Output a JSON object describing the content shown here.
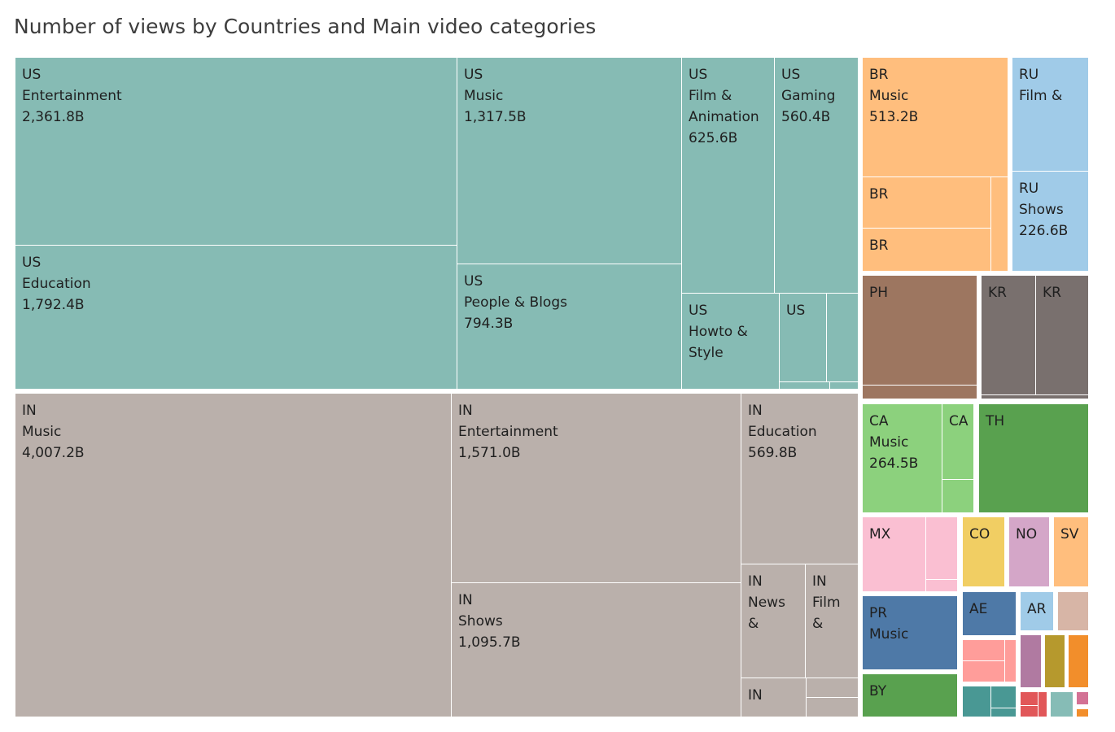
{
  "chart_data": {
    "type": "treemap",
    "title": "Number of views by Countries and Main video categories",
    "unit": "B",
    "colors": {
      "US": "#86bbb4",
      "IN": "#bab0ab",
      "BR": "#ffbe7d",
      "RU": "#a0cbe8",
      "PH": "#9d7660",
      "KR": "#79706e",
      "CA": "#8cd17d",
      "TH": "#59a14f",
      "MX": "#fabfd2",
      "CO": "#f1ce63",
      "NO": "#d4a6c8",
      "SV": "#ffbe7d",
      "PR": "#4e79a7",
      "AE": "#4e79a7",
      "AR": "#a0cbe8",
      "BY": "#59a14f",
      "misc_tan": "#d7b5a6",
      "misc_salmon": "#ff9d9a",
      "misc_purple": "#b07aa1",
      "misc_olive": "#b6992d",
      "misc_orange": "#f28e2b",
      "misc_teal": "#499894",
      "misc_red": "#e15759",
      "misc_seafoam": "#86bcb6",
      "misc_pink": "#d37295"
    },
    "cells": [
      {
        "country": "US",
        "category": "Entertainment",
        "value": "2,361.8B"
      },
      {
        "country": "US",
        "category": "Education",
        "value": "1,792.4B"
      },
      {
        "country": "US",
        "category": "Music",
        "value": "1,317.5B"
      },
      {
        "country": "US",
        "category": "People & Blogs",
        "value": "794.3B"
      },
      {
        "country": "US",
        "category": "Film & Animation",
        "value": "625.6B"
      },
      {
        "country": "US",
        "category": "Gaming",
        "value": "560.4B"
      },
      {
        "country": "US",
        "category": "Howto & Style",
        "value": null
      },
      {
        "country": "US",
        "category": null,
        "value": null
      },
      {
        "country": "IN",
        "category": "Music",
        "value": "4,007.2B"
      },
      {
        "country": "IN",
        "category": "Entertainment",
        "value": "1,571.0B"
      },
      {
        "country": "IN",
        "category": "Shows",
        "value": "1,095.7B"
      },
      {
        "country": "IN",
        "category": "Education",
        "value": "569.8B"
      },
      {
        "country": "IN",
        "category": "News &",
        "value": null
      },
      {
        "country": "IN",
        "category": "Film &",
        "value": null
      },
      {
        "country": "IN",
        "category": null,
        "value": null
      },
      {
        "country": "BR",
        "category": "Music",
        "value": "513.2B"
      },
      {
        "country": "BR",
        "category": null,
        "value": null
      },
      {
        "country": "BR",
        "category": null,
        "value": null
      },
      {
        "country": "RU",
        "category": "Film &",
        "value": null
      },
      {
        "country": "RU",
        "category": "Shows",
        "value": "226.6B"
      },
      {
        "country": "PH",
        "category": null,
        "value": null
      },
      {
        "country": "KR",
        "category": null,
        "value": null
      },
      {
        "country": "KR",
        "category": null,
        "value": null
      },
      {
        "country": "CA",
        "category": "Music",
        "value": "264.5B"
      },
      {
        "country": "CA",
        "category": null,
        "value": null
      },
      {
        "country": "TH",
        "category": null,
        "value": null
      },
      {
        "country": "MX",
        "category": null,
        "value": null
      },
      {
        "country": "CO",
        "category": null,
        "value": null
      },
      {
        "country": "NO",
        "category": null,
        "value": null
      },
      {
        "country": "SV",
        "category": null,
        "value": null
      },
      {
        "country": "PR",
        "category": "Music",
        "value": null
      },
      {
        "country": "AE",
        "category": null,
        "value": null
      },
      {
        "country": "AR",
        "category": null,
        "value": null
      },
      {
        "country": "BY",
        "category": null,
        "value": null
      }
    ]
  },
  "labels": {
    "US_ent": [
      "US",
      "Entertainment",
      "2,361.8B"
    ],
    "US_edu": [
      "US",
      "Education",
      "1,792.4B"
    ],
    "US_music": [
      "US",
      "Music",
      "1,317.5B"
    ],
    "US_people": [
      "US",
      "People & Blogs",
      "794.3B"
    ],
    "US_film": [
      "US",
      "Film &",
      "Animation",
      "625.6B"
    ],
    "US_gaming": [
      "US",
      "Gaming",
      "560.4B"
    ],
    "US_howto": [
      "US",
      "Howto &",
      "Style"
    ],
    "US_small": [
      "US"
    ],
    "IN_music": [
      "IN",
      "Music",
      "4,007.2B"
    ],
    "IN_ent": [
      "IN",
      "Entertainment",
      "1,571.0B"
    ],
    "IN_shows": [
      "IN",
      "Shows",
      "1,095.7B"
    ],
    "IN_edu": [
      "IN",
      "Education",
      "569.8B"
    ],
    "IN_news": [
      "IN",
      "News",
      "&"
    ],
    "IN_film": [
      "IN",
      "Film",
      "&"
    ],
    "IN_small": [
      "IN"
    ],
    "BR_music": [
      "BR",
      "Music",
      "513.2B"
    ],
    "BR_2": [
      "BR"
    ],
    "BR_3": [
      "BR"
    ],
    "RU_film": [
      "RU",
      "Film &"
    ],
    "RU_shows": [
      "RU",
      "Shows",
      "226.6B"
    ],
    "PH": [
      "PH"
    ],
    "KR_1": [
      "KR"
    ],
    "KR_2": [
      "KR"
    ],
    "CA_music": [
      "CA",
      "Music",
      "264.5B"
    ],
    "CA_2": [
      "CA"
    ],
    "TH": [
      "TH"
    ],
    "MX": [
      "MX"
    ],
    "CO": [
      "CO"
    ],
    "NO": [
      "NO"
    ],
    "SV": [
      "SV"
    ],
    "PR_music": [
      "PR",
      "Music"
    ],
    "AE": [
      "AE"
    ],
    "AR": [
      "AR"
    ],
    "BY": [
      "BY"
    ]
  }
}
